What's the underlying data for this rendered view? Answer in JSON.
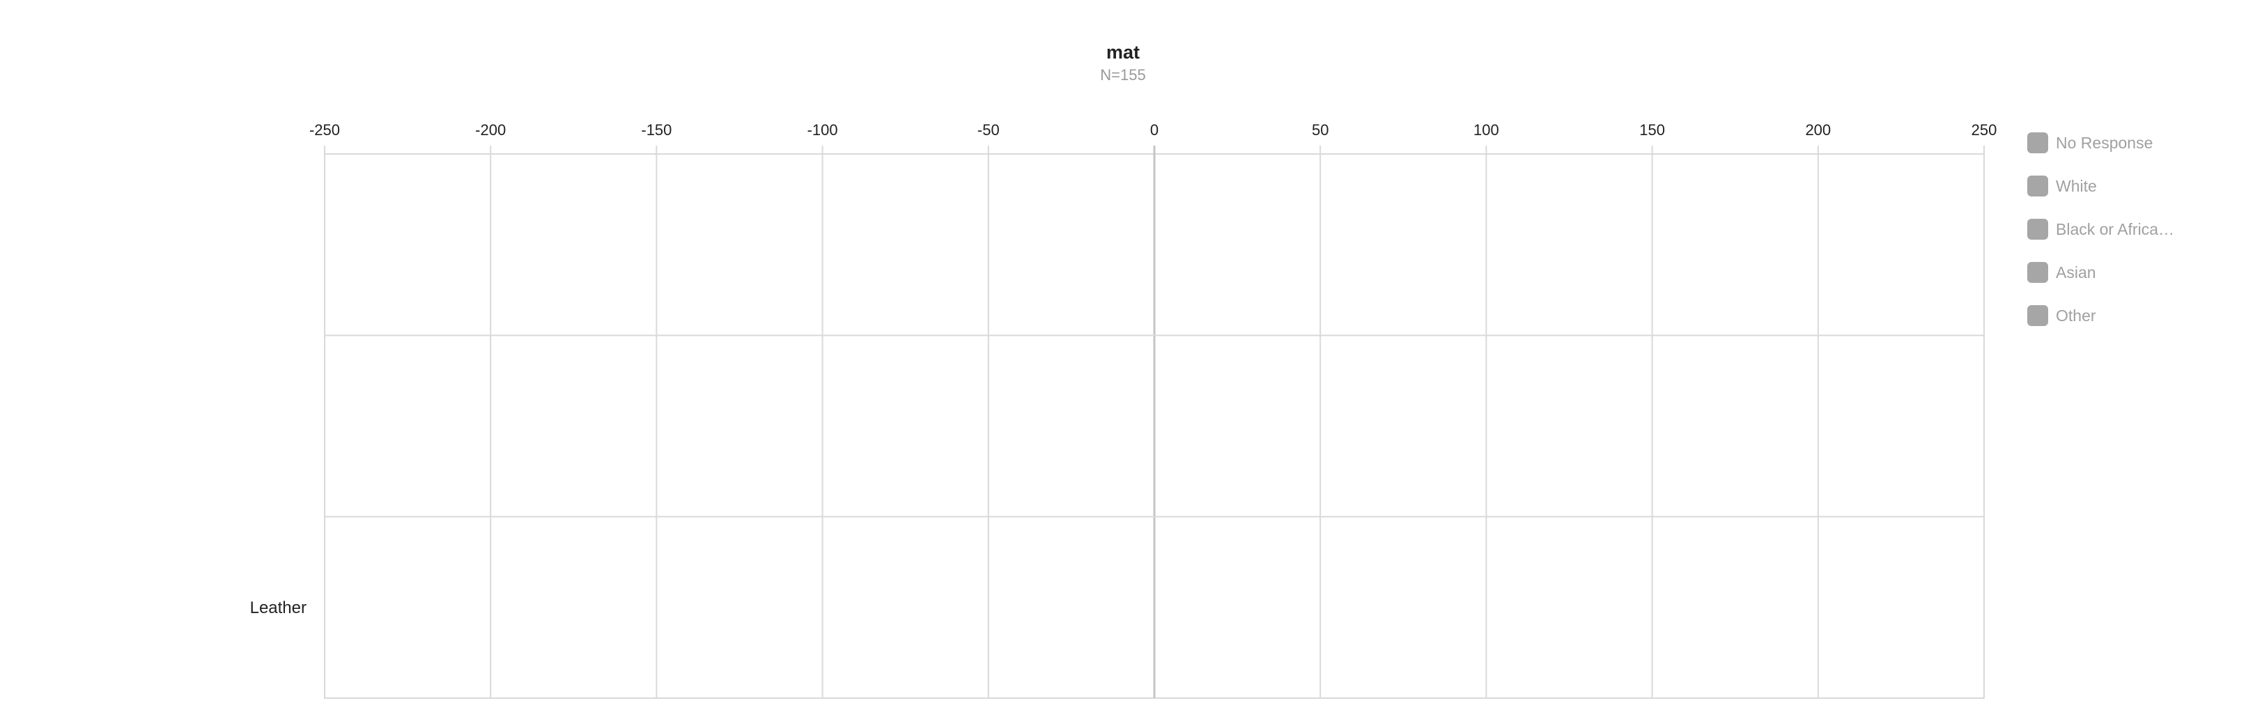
{
  "chart_data": {
    "type": "bar",
    "orientation": "horizontal",
    "title": "mat",
    "subtitle": "N=155",
    "xlim": [
      -250,
      250
    ],
    "x_ticks": [
      -250,
      -200,
      -150,
      -100,
      -50,
      0,
      50,
      100,
      150,
      200,
      250
    ],
    "x_tick_labels": [
      "-250",
      "-200",
      "-150",
      "-100",
      "-50",
      "0",
      "50",
      "100",
      "150",
      "200",
      "250"
    ],
    "categories": [
      "",
      "",
      "Leather"
    ],
    "series": [
      {
        "name": "No Response",
        "color": "#a6a6a6",
        "values": [
          0,
          0,
          0
        ]
      },
      {
        "name": "White",
        "color": "#a6a6a6",
        "values": [
          0,
          0,
          0
        ]
      },
      {
        "name": "Black or Africa…",
        "color": "#a6a6a6",
        "values": [
          0,
          0,
          0
        ]
      },
      {
        "name": "Asian",
        "color": "#a6a6a6",
        "values": [
          0,
          0,
          0
        ]
      },
      {
        "name": "Other",
        "color": "#a6a6a6",
        "values": [
          0,
          0,
          0
        ]
      }
    ],
    "grid": true,
    "legend_position": "right"
  }
}
